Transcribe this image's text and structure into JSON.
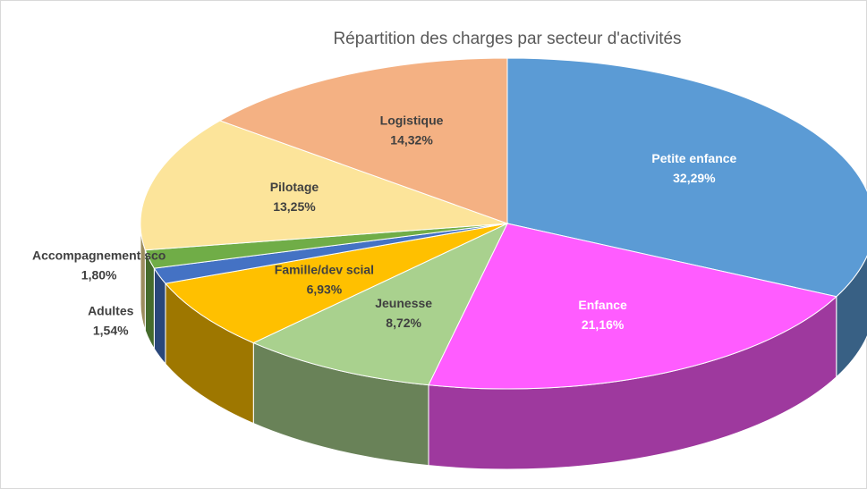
{
  "chart_data": {
    "type": "pie",
    "title": "Répartition des charges par secteur d'activités",
    "categories": [
      "Petite enfance",
      "Enfance",
      "Jeunesse",
      "Famille/dev scial",
      "Adultes",
      "Accompagnement sco",
      "Pilotage",
      "Logistique"
    ],
    "values": [
      32.29,
      21.16,
      8.72,
      6.93,
      1.54,
      1.8,
      13.25,
      14.32
    ],
    "value_labels": [
      "32,29%",
      "21,16%",
      "8,72%",
      "6,93%",
      "1,54%",
      "1,80%",
      "13,25%",
      "14,32%"
    ],
    "colors": [
      "#5b9bd5",
      "#ff5cff",
      "#a9d18e",
      "#ffc000",
      "#4472c4",
      "#70ad47",
      "#fce49a",
      "#f4b183"
    ],
    "three_d": true
  }
}
